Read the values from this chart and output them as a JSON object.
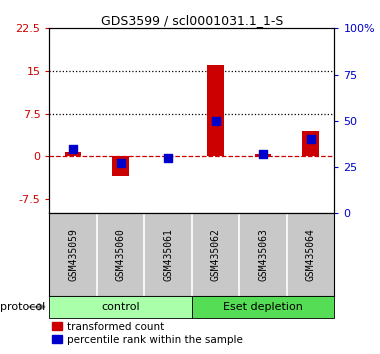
{
  "title": "GDS3599 / scl0001031.1_1-S",
  "samples": [
    "GSM435059",
    "GSM435060",
    "GSM435061",
    "GSM435062",
    "GSM435063",
    "GSM435064"
  ],
  "red_values": [
    0.8,
    -3.5,
    0.15,
    16.0,
    0.4,
    4.5
  ],
  "blue_values_pct": [
    35,
    27,
    30,
    50,
    32,
    40
  ],
  "left_ylim": [
    -10.0,
    22.5
  ],
  "right_ylim": [
    0,
    100
  ],
  "left_yticks": [
    -7.5,
    0,
    7.5,
    15,
    22.5
  ],
  "right_yticks": [
    0,
    25,
    50,
    75,
    100
  ],
  "left_ytick_labels": [
    "-7.5",
    "0",
    "7.5",
    "15",
    "22.5"
  ],
  "right_ytick_labels": [
    "0",
    "25",
    "50",
    "75",
    "100%"
  ],
  "dotted_lines": [
    7.5,
    15
  ],
  "dashed_zero": 0,
  "protocol_labels": [
    "control",
    "Eset depletion"
  ],
  "protocol_colors_light": [
    "#AAFFAA",
    "#55DD55"
  ],
  "protocol_ranges": [
    [
      0,
      3
    ],
    [
      3,
      6
    ]
  ],
  "bg_color": "#C8C8C8",
  "bar_color": "#CC0000",
  "square_color": "#0000CC",
  "bar_width": 0.35,
  "square_size": 40,
  "legend_red_label": "transformed count",
  "legend_blue_label": "percentile rank within the sample"
}
